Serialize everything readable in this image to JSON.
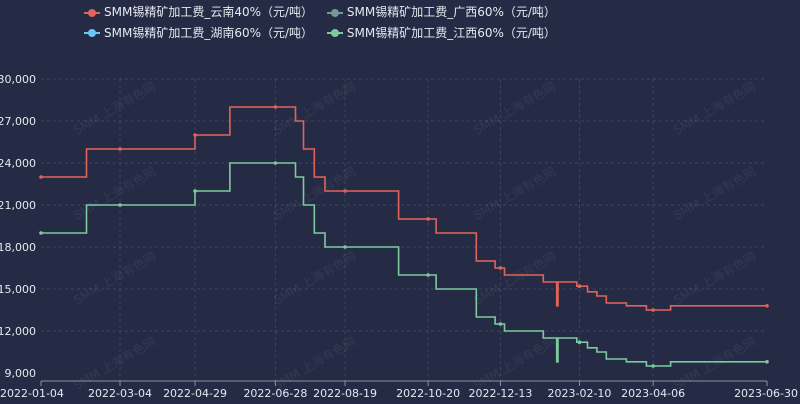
{
  "watermark": "SMM 上海有色网",
  "chart_data": {
    "type": "line",
    "step": true,
    "title": "",
    "xlabel": "",
    "ylabel": "",
    "ylim": [
      9000,
      30000
    ],
    "yticks": [
      "9,000",
      "12,000",
      "15,000",
      "18,000",
      "21,000",
      "24,000",
      "27,000",
      "30,000"
    ],
    "ytick_values": [
      9000,
      12000,
      15000,
      18000,
      21000,
      24000,
      27000,
      30000
    ],
    "xlim": [
      "2022-01-04",
      "2023-06-30"
    ],
    "xticks": [
      "2022-01-04",
      "2022-03-04",
      "2022-04-29",
      "2022-06-28",
      "2022-08-19",
      "2022-10-20",
      "2022-12-13",
      "2023-02-10",
      "2023-04-06",
      "2023-06-30"
    ],
    "grid": true,
    "legend_position": "top",
    "series": [
      {
        "name": "SMM锡精矿加工费_云南40%（元/吨）",
        "color": "#e0645a",
        "points": [
          [
            "2022-01-04",
            23000
          ],
          [
            "2022-02-07",
            25000
          ],
          [
            "2022-04-29",
            26000
          ],
          [
            "2022-05-25",
            28000
          ],
          [
            "2022-07-13",
            27000
          ],
          [
            "2022-07-19",
            25000
          ],
          [
            "2022-07-27",
            23000
          ],
          [
            "2022-08-04",
            22000
          ],
          [
            "2022-09-28",
            20000
          ],
          [
            "2022-10-26",
            19000
          ],
          [
            "2022-11-25",
            17000
          ],
          [
            "2022-12-09",
            16500
          ],
          [
            "2022-12-16",
            16000
          ],
          [
            "2023-01-14",
            15500
          ],
          [
            "2023-01-24",
            13800
          ],
          [
            "2023-01-25",
            15500
          ],
          [
            "2023-02-08",
            15200
          ],
          [
            "2023-02-16",
            14800
          ],
          [
            "2023-02-23",
            14500
          ],
          [
            "2023-03-02",
            14000
          ],
          [
            "2023-03-17",
            13800
          ],
          [
            "2023-04-01",
            13500
          ],
          [
            "2023-04-19",
            13800
          ],
          [
            "2023-06-30",
            13800
          ]
        ]
      },
      {
        "name": "SMM锡精矿加工费_广西60%（元/吨）",
        "color": "#6f9a96",
        "points": []
      },
      {
        "name": "SMM锡精矿加工费_湖南60%（元/吨）",
        "color": "#6cc7f0",
        "points": []
      },
      {
        "name": "SMM锡精矿加工费_江西60%（元/吨）",
        "color": "#7ecaa0",
        "points": [
          [
            "2022-01-04",
            19000
          ],
          [
            "2022-02-07",
            21000
          ],
          [
            "2022-04-29",
            22000
          ],
          [
            "2022-05-25",
            24000
          ],
          [
            "2022-07-13",
            23000
          ],
          [
            "2022-07-19",
            21000
          ],
          [
            "2022-07-27",
            19000
          ],
          [
            "2022-08-04",
            18000
          ],
          [
            "2022-09-28",
            16000
          ],
          [
            "2022-10-26",
            15000
          ],
          [
            "2022-11-25",
            13000
          ],
          [
            "2022-12-09",
            12500
          ],
          [
            "2022-12-16",
            12000
          ],
          [
            "2023-01-14",
            11500
          ],
          [
            "2023-01-24",
            9800
          ],
          [
            "2023-01-25",
            11500
          ],
          [
            "2023-02-08",
            11200
          ],
          [
            "2023-02-16",
            10800
          ],
          [
            "2023-02-23",
            10500
          ],
          [
            "2023-03-02",
            10000
          ],
          [
            "2023-03-17",
            9800
          ],
          [
            "2023-04-01",
            9500
          ],
          [
            "2023-04-19",
            9800
          ],
          [
            "2023-06-30",
            9800
          ]
        ]
      }
    ]
  }
}
